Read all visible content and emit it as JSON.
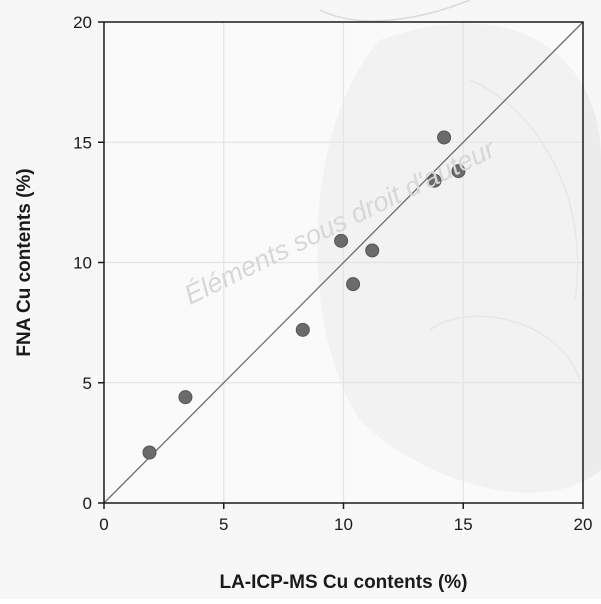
{
  "watermark": "Éléments sous droit d'auteur",
  "chart_data": {
    "type": "scatter",
    "xlabel": "LA-ICP-MS Cu contents (%)",
    "ylabel": "FNA Cu contents (%)",
    "xlim": [
      0,
      20
    ],
    "ylim": [
      0,
      20
    ],
    "x_ticks": [
      0,
      5,
      10,
      15,
      20
    ],
    "y_ticks": [
      0,
      5,
      10,
      15,
      20
    ],
    "x_tick_labels": [
      "0",
      "5",
      "10",
      "15",
      "20"
    ],
    "y_tick_labels": [
      "0",
      "5",
      "10",
      "15",
      "20"
    ],
    "grid": true,
    "reference_line": {
      "label": "",
      "x": [
        0,
        20
      ],
      "y": [
        0,
        20
      ]
    },
    "series": [
      {
        "points": [
          {
            "x": 1.9,
            "y": 2.1
          },
          {
            "x": 3.4,
            "y": 4.4
          },
          {
            "x": 8.3,
            "y": 7.2
          },
          {
            "x": 9.9,
            "y": 10.9
          },
          {
            "x": 10.4,
            "y": 9.1
          },
          {
            "x": 11.2,
            "y": 10.5
          },
          {
            "x": 13.8,
            "y": 13.4
          },
          {
            "x": 14.2,
            "y": 15.2
          },
          {
            "x": 14.8,
            "y": 13.8
          }
        ]
      }
    ],
    "colors": {
      "point": "#6b6b6b",
      "point_stroke": "#555555",
      "reference_line": "#6e6e6e",
      "grid": "#e4e4e4",
      "axes": "#1a1a1a"
    }
  }
}
